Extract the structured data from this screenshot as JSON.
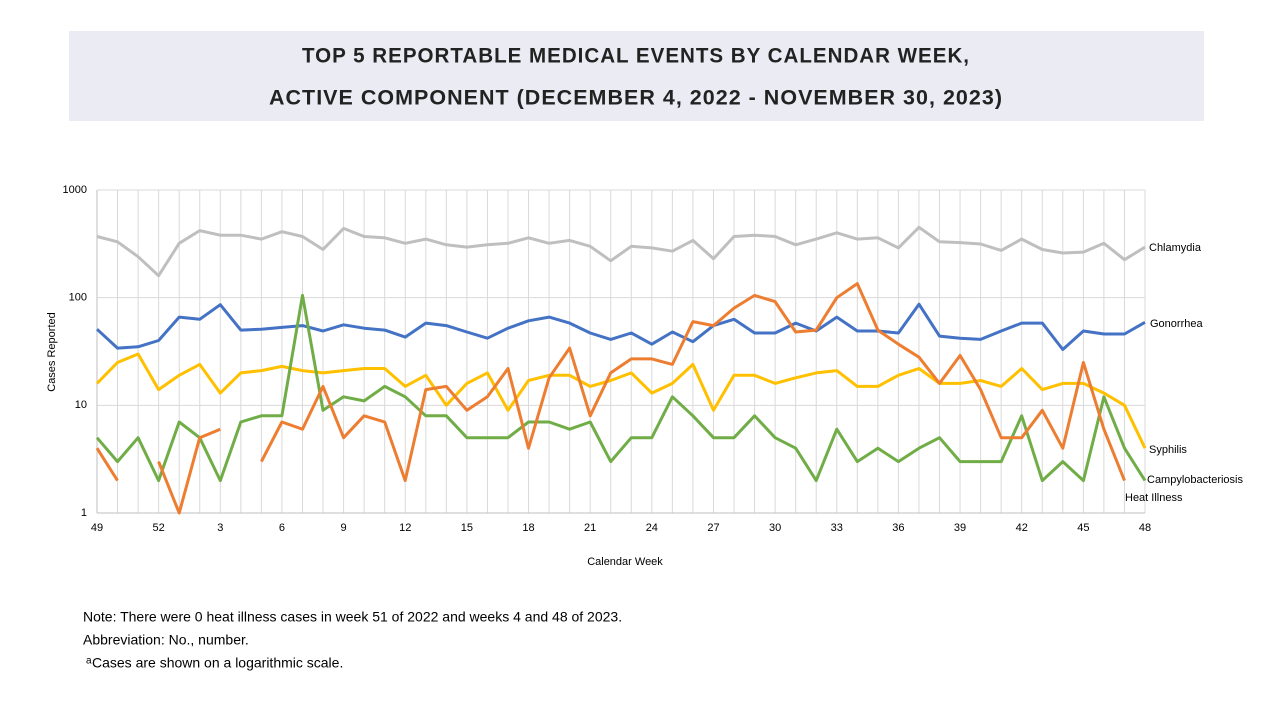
{
  "chart_data": {
    "type": "line",
    "title_lines": [
      "TOP 5 REPORTABLE MEDICAL EVENTS BY CALENDAR WEEK,",
      "ACTIVE COMPONENT (DECEMBER 4, 2022 - NOVEMBER 30, 2023)"
    ],
    "x_label": "Calendar Week",
    "y_label": "Cases Reported",
    "log_scale": true,
    "grid": true,
    "ylim": [
      1,
      1000
    ],
    "yticks": [
      1,
      10,
      100,
      1000
    ],
    "categories": [
      49,
      null,
      null,
      52,
      null,
      null,
      3,
      null,
      null,
      6,
      null,
      null,
      9,
      null,
      null,
      12,
      null,
      null,
      15,
      null,
      null,
      18,
      null,
      null,
      21,
      null,
      null,
      24,
      null,
      null,
      27,
      null,
      null,
      30,
      null,
      null,
      33,
      null,
      null,
      36,
      null,
      null,
      39,
      null,
      null,
      42,
      null,
      null,
      45,
      null,
      null,
      48
    ],
    "series": [
      {
        "name": "Chlamydia",
        "color": "#bfbfbf",
        "values": [
          370,
          330,
          240,
          160,
          320,
          420,
          380,
          380,
          350,
          410,
          370,
          280,
          440,
          370,
          360,
          320,
          350,
          310,
          295,
          310,
          320,
          360,
          320,
          340,
          300,
          220,
          300,
          290,
          270,
          340,
          230,
          370,
          380,
          370,
          310,
          350,
          400,
          350,
          360,
          290,
          450,
          330,
          325,
          315,
          275,
          350,
          280,
          260,
          265,
          320,
          225,
          295
        ]
      },
      {
        "name": "Gonorrhea",
        "color": "#4472c4",
        "values": [
          51,
          34,
          35,
          40,
          66,
          63,
          86,
          50,
          51,
          53,
          55,
          49,
          56,
          52,
          50,
          43,
          58,
          55,
          48,
          42,
          52,
          61,
          66,
          58,
          47,
          41,
          47,
          37,
          48,
          39,
          55,
          63,
          47,
          47,
          58,
          49,
          66,
          49,
          49,
          47,
          87,
          44,
          42,
          41,
          49,
          58,
          58,
          33,
          49,
          46,
          46,
          59
        ]
      },
      {
        "name": "Syphilis",
        "color": "#ffc000",
        "values": [
          16,
          25,
          30,
          14,
          19,
          24,
          13,
          20,
          21,
          23,
          21,
          20,
          21,
          22,
          22,
          15,
          19,
          10,
          16,
          20,
          9,
          17,
          19,
          19,
          15,
          17,
          20,
          13,
          16,
          24,
          9,
          19,
          19,
          16,
          18,
          20,
          21,
          15,
          15,
          19,
          22,
          16,
          16,
          17,
          15,
          22,
          14,
          16,
          16,
          13,
          10,
          4
        ]
      },
      {
        "name": "Campylobacteriosis",
        "color": "#70ad47",
        "values": [
          5,
          3,
          5,
          2,
          7,
          5,
          2,
          7,
          8,
          8,
          105,
          9,
          12,
          11,
          15,
          12,
          8,
          8,
          5,
          5,
          5,
          7,
          7,
          6,
          7,
          3,
          5,
          5,
          12,
          8,
          5,
          5,
          8,
          5,
          4,
          2,
          6,
          3,
          4,
          3,
          4,
          5,
          3,
          3,
          3,
          8,
          2,
          3,
          2,
          12,
          4,
          2
        ]
      },
      {
        "name": "Heat Illness",
        "color": "#ed7d31",
        "values": [
          4,
          2,
          null,
          3,
          1,
          5,
          6,
          null,
          3,
          7,
          6,
          15,
          5,
          8,
          7,
          2,
          14,
          15,
          9,
          12,
          22,
          4,
          18,
          34,
          8,
          20,
          27,
          27,
          24,
          60,
          55,
          80,
          105,
          92,
          48,
          50,
          100,
          135,
          50,
          37,
          28,
          16,
          29,
          14,
          5,
          5,
          9,
          4,
          25,
          6,
          2,
          null
        ]
      }
    ],
    "notes": [
      "Note: There were 0 heat illness cases in week 51 of 2022 and weeks 4 and 48 of 2023.",
      "Abbreviation: No., number."
    ],
    "footnote_marker": "a",
    "footnote": "Cases are shown on a logarithmic scale."
  }
}
